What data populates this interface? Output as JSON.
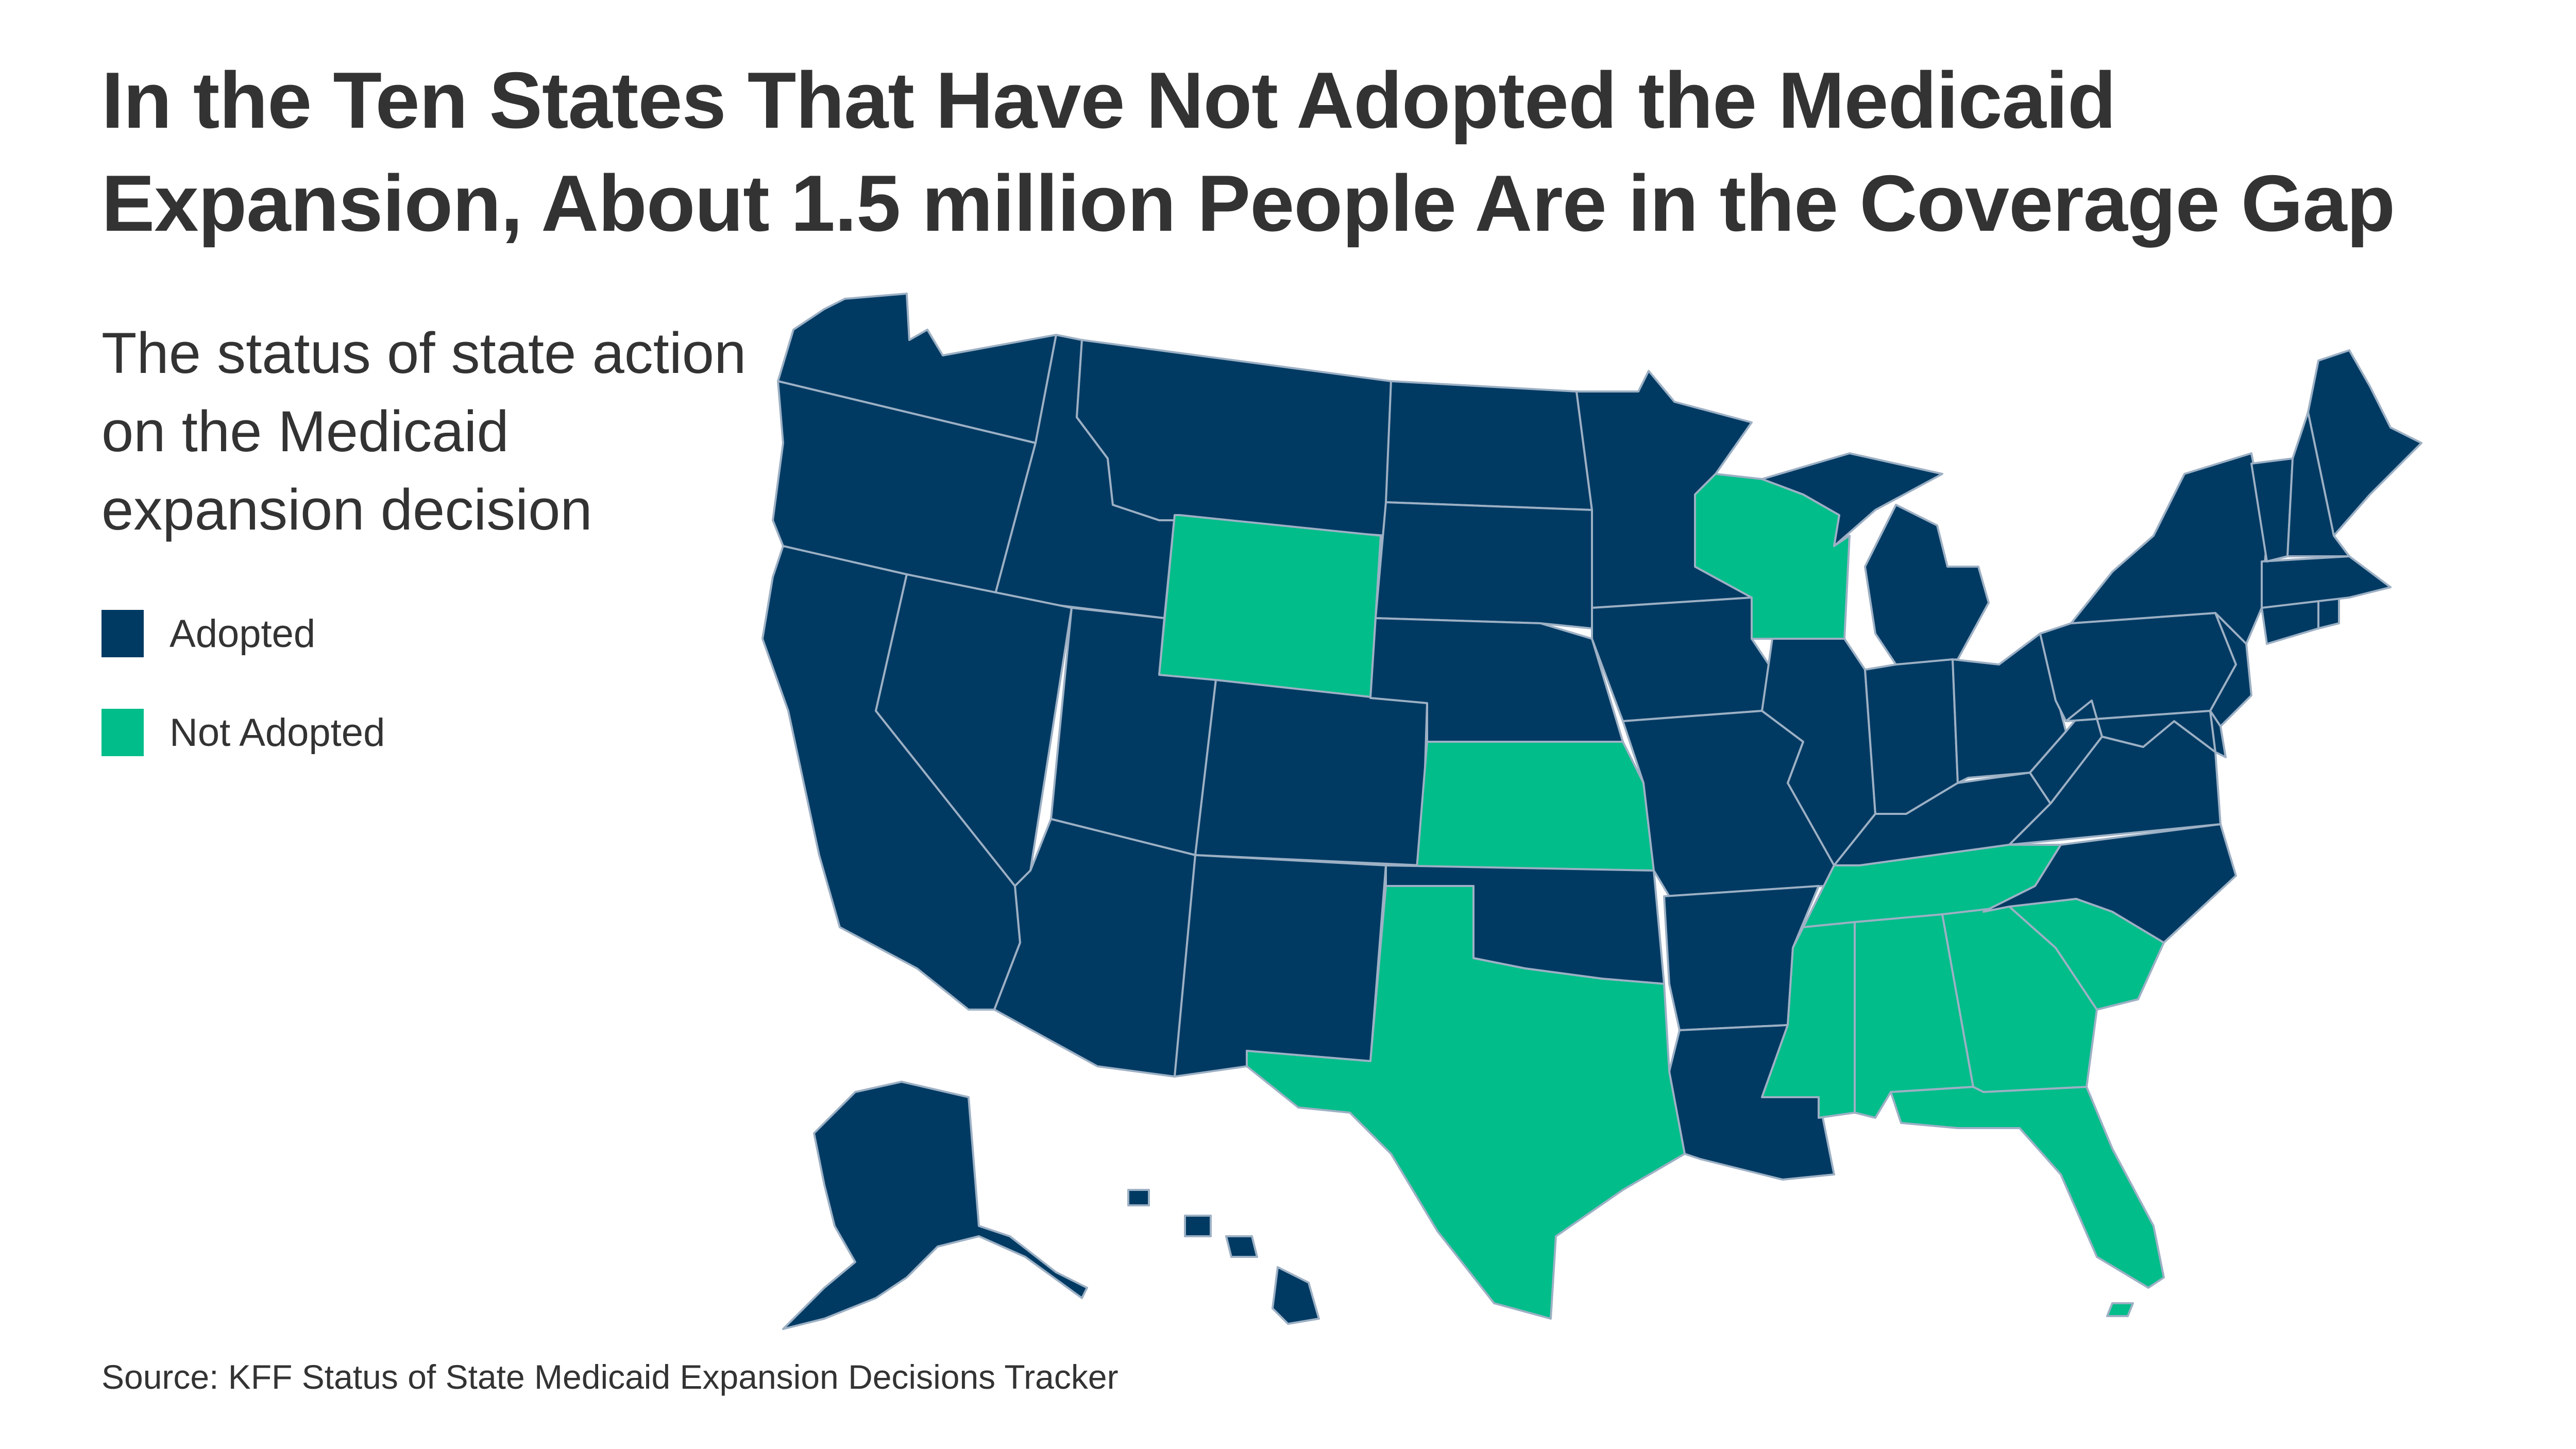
{
  "title": "In the Ten States That Have Not Adopted the Medicaid Expansion, About 1.5 million People Are in the Coverage Gap",
  "subtitle": "The status of state action on the Medicaid expansion decision",
  "legend": [
    {
      "label": "Adopted",
      "color": "#003a63"
    },
    {
      "label": "Not Adopted",
      "color": "#00bd8a"
    }
  ],
  "source": "Source:  KFF Status of State Medicaid Expansion Decisions Tracker",
  "map_data": {
    "categories": {
      "adopted": "#003a63",
      "not_adopted": "#00bd8a"
    },
    "not_adopted_states": [
      "Wyoming",
      "Kansas",
      "Texas",
      "Wisconsin",
      "Tennessee",
      "Mississippi",
      "Alabama",
      "Georgia",
      "South Carolina",
      "Florida"
    ],
    "adopted_states": [
      "Washington",
      "Oregon",
      "California",
      "Idaho",
      "Nevada",
      "Montana",
      "Utah",
      "Arizona",
      "Colorado",
      "New Mexico",
      "North Dakota",
      "South Dakota",
      "Nebraska",
      "Oklahoma",
      "Minnesota",
      "Iowa",
      "Missouri",
      "Arkansas",
      "Louisiana",
      "Illinois",
      "Indiana",
      "Michigan",
      "Ohio",
      "Kentucky",
      "West Virginia",
      "Virginia",
      "North Carolina",
      "Pennsylvania",
      "New York",
      "Maryland",
      "Delaware",
      "New Jersey",
      "Connecticut",
      "Rhode Island",
      "Massachusetts",
      "Vermont",
      "New Hampshire",
      "Maine",
      "Alaska",
      "Hawaii"
    ]
  }
}
